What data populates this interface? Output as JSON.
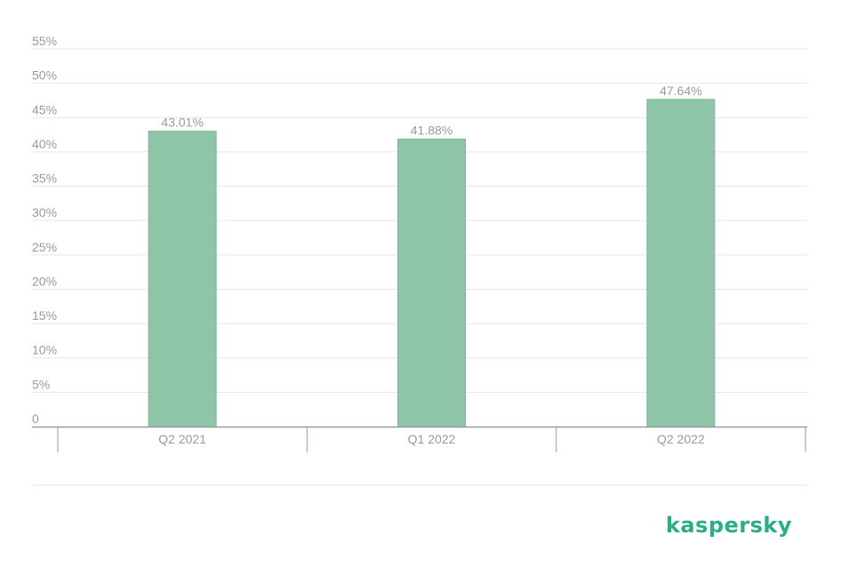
{
  "chart_data": {
    "type": "bar",
    "categories": [
      "Q2 2021",
      "Q1 2022",
      "Q2 2022"
    ],
    "values": [
      43.01,
      41.88,
      47.64
    ],
    "value_labels": [
      "43.01%",
      "41.88%",
      "47.64%"
    ],
    "title": "",
    "xlabel": "",
    "ylabel": "",
    "ylim": [
      0,
      55
    ],
    "y_ticks": [
      0,
      5,
      10,
      15,
      20,
      25,
      30,
      35,
      40,
      45,
      50,
      55
    ],
    "y_tick_labels": [
      "0",
      "5%",
      "10%",
      "15%",
      "20%",
      "25%",
      "30%",
      "35%",
      "40%",
      "45%",
      "50%",
      "55%"
    ],
    "grid": true,
    "legend": "none",
    "colors": {
      "bar": "#8ec4a8",
      "bar_edge": "#7cb996",
      "grid": "#e6e6e6",
      "axis": "#9e9e9e",
      "text": "#9a9a9a",
      "brand": "#2bad8a"
    }
  },
  "brand": {
    "logo_text": "kaspersky"
  }
}
